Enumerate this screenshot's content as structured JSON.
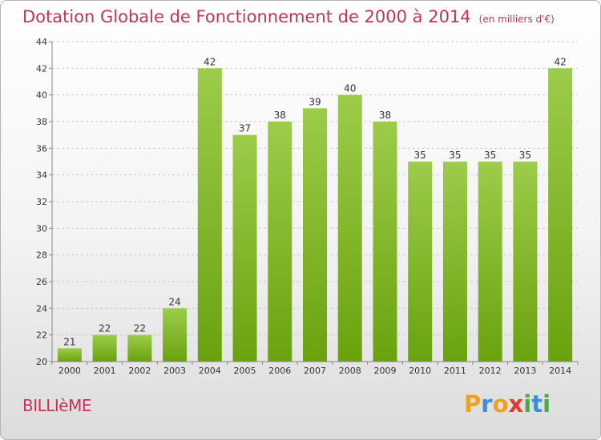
{
  "header": {
    "title": "Dotation Globale de Fonctionnement de 2000 à 2014",
    "subtitle": "(en milliers d'€)"
  },
  "commune": "BILLIèME",
  "logo": {
    "letters": [
      {
        "char": "P",
        "color": "#f0a020"
      },
      {
        "char": "r",
        "color": "#3b8fd8"
      },
      {
        "char": "o",
        "color": "#f0a020"
      },
      {
        "char": "x",
        "color": "#e23a2c"
      },
      {
        "char": "i",
        "color": "#4aa84a"
      },
      {
        "char": "t",
        "color": "#3b8fd8"
      },
      {
        "char": "i",
        "color": "#4aa84a"
      }
    ]
  },
  "colors": {
    "bar_top": "#9ccc4a",
    "bar_bottom": "#6aa20e",
    "grid": "#cccccc",
    "axis": "#888888",
    "title": "#c0355b"
  },
  "chart_data": {
    "type": "bar",
    "categories": [
      "2000",
      "2001",
      "2002",
      "2003",
      "2004",
      "2005",
      "2006",
      "2007",
      "2008",
      "2009",
      "2010",
      "2011",
      "2012",
      "2013",
      "2014"
    ],
    "values": [
      21,
      22,
      22,
      24,
      42,
      37,
      38,
      39,
      40,
      38,
      35,
      35,
      35,
      35,
      42
    ],
    "ylim": [
      20,
      44
    ],
    "yticks": [
      20,
      22,
      24,
      26,
      28,
      30,
      32,
      34,
      36,
      38,
      40,
      42,
      44
    ],
    "grid": "dashed horizontal",
    "data_labels": true
  }
}
